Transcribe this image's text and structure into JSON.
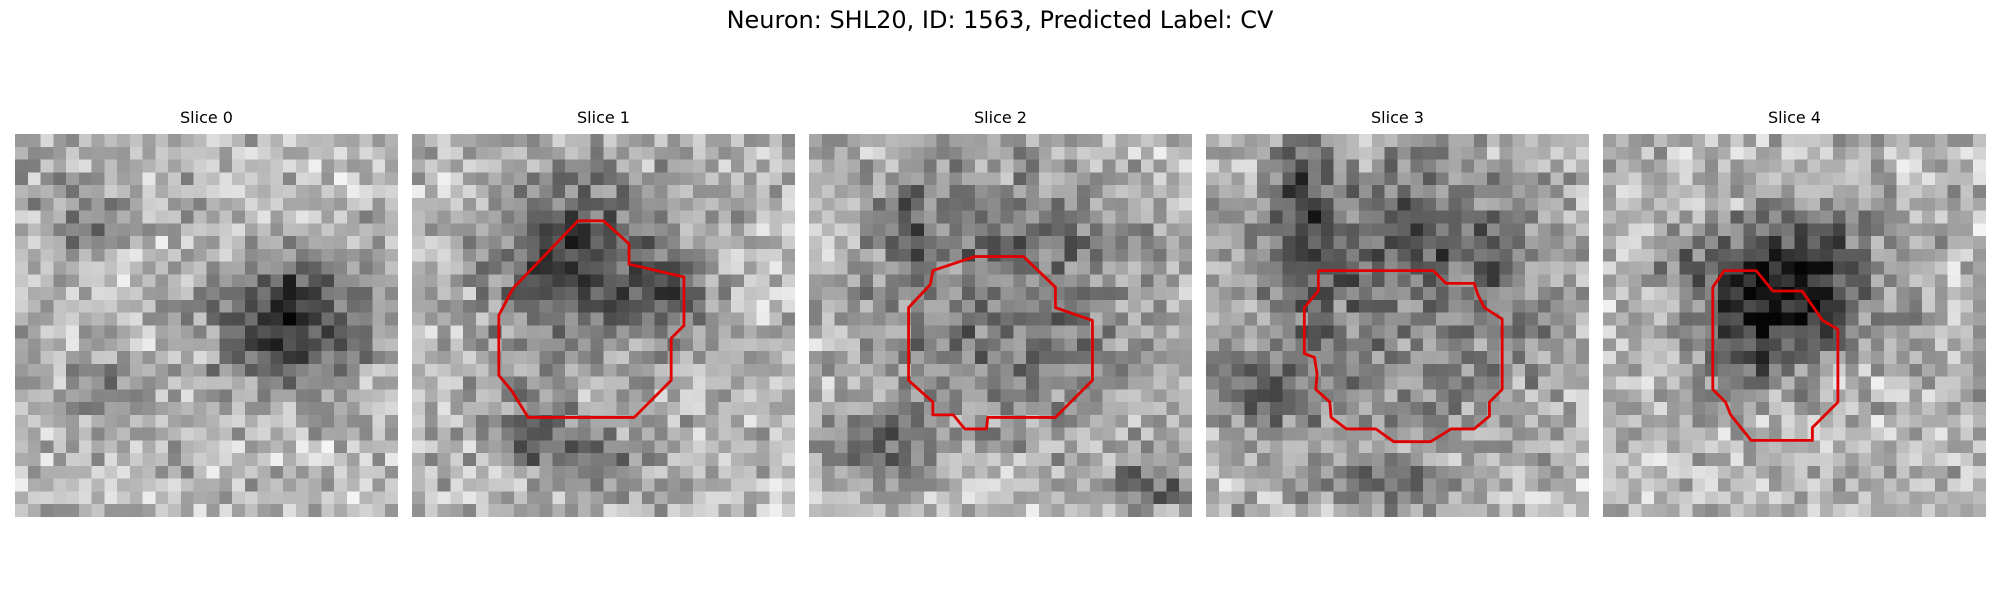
{
  "title": "Neuron: SHL20, ID: 1563, Predicted Label: CV",
  "outline_color": "#e00000",
  "slices": [
    {
      "label": "Slice 0",
      "seed": 11,
      "has_outline": false
    },
    {
      "label": "Slice 1",
      "seed": 23,
      "has_outline": true
    },
    {
      "label": "Slice 2",
      "seed": 37,
      "has_outline": true
    },
    {
      "label": "Slice 3",
      "seed": 51,
      "has_outline": true
    },
    {
      "label": "Slice 4",
      "seed": 67,
      "has_outline": true
    }
  ]
}
